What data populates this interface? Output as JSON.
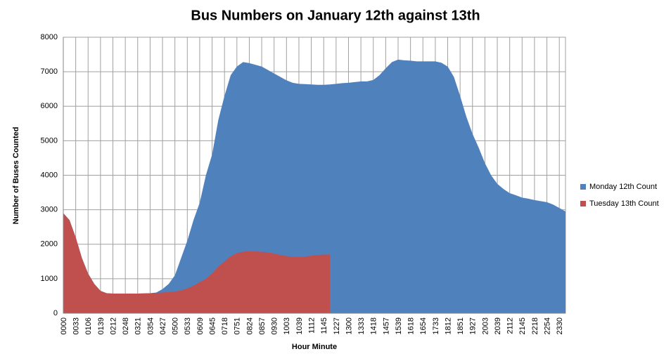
{
  "chart_data": {
    "type": "area",
    "title": "Bus Numbers on January 12th against 13th",
    "x_label": "Hour Minute",
    "y_label": "Number of Buses Counted",
    "categories": [
      "0000",
      null,
      "0033",
      null,
      "0106",
      null,
      "0139",
      null,
      "0212",
      null,
      "0248",
      null,
      "0321",
      null,
      "0354",
      null,
      "0427",
      null,
      "0500",
      null,
      "0533",
      null,
      "0609",
      null,
      "0645",
      null,
      "0718",
      null,
      "0751",
      null,
      "0824",
      null,
      "0857",
      null,
      "0930",
      null,
      "1003",
      null,
      "1039",
      null,
      "1112",
      null,
      "1145",
      null,
      "1227",
      null,
      "1300",
      null,
      "1333",
      null,
      "1418",
      null,
      "1457",
      null,
      "1539",
      null,
      "1618",
      null,
      "1654",
      null,
      "1733",
      null,
      "1812",
      null,
      "1851",
      null,
      "1927",
      null,
      "2003",
      null,
      "2039",
      null,
      "2112",
      null,
      "2145",
      null,
      "2218",
      null,
      "2254",
      null,
      "2330",
      null
    ],
    "series": [
      {
        "name": "Monday 12th Count",
        "color": "#4f81bd",
        "values": [
          2900,
          2700,
          2200,
          1600,
          1150,
          850,
          650,
          580,
          570,
          570,
          570,
          570,
          570,
          575,
          580,
          600,
          700,
          850,
          1100,
          1600,
          2100,
          2700,
          3200,
          4000,
          4600,
          5600,
          6300,
          6900,
          7150,
          7280,
          7250,
          7200,
          7150,
          7050,
          6950,
          6850,
          6750,
          6680,
          6650,
          6640,
          6630,
          6620,
          6620,
          6630,
          6650,
          6670,
          6680,
          6700,
          6720,
          6720,
          6760,
          6900,
          7100,
          7280,
          7350,
          7330,
          7320,
          7300,
          7300,
          7300,
          7300,
          7260,
          7150,
          6850,
          6300,
          5700,
          5200,
          4800,
          4350,
          4000,
          3750,
          3600,
          3480,
          3420,
          3350,
          3320,
          3280,
          3250,
          3220,
          3150,
          3050,
          2950
        ]
      },
      {
        "name": "Tuesday 13th Count",
        "color": "#c0504d",
        "values": [
          2900,
          2700,
          2200,
          1600,
          1150,
          850,
          650,
          580,
          570,
          570,
          570,
          570,
          570,
          575,
          580,
          590,
          600,
          610,
          630,
          660,
          720,
          800,
          900,
          1000,
          1150,
          1350,
          1500,
          1650,
          1740,
          1780,
          1800,
          1790,
          1780,
          1760,
          1730,
          1690,
          1660,
          1630,
          1630,
          1640,
          1670,
          1690,
          1700,
          1700,
          null,
          null,
          null,
          null,
          null,
          null,
          null,
          null,
          null,
          null,
          null,
          null,
          null,
          null,
          null,
          null,
          null,
          null,
          null,
          null,
          null,
          null,
          null,
          null,
          null,
          null,
          null,
          null,
          null,
          null,
          null,
          null,
          null,
          null,
          null,
          null,
          null,
          null
        ]
      }
    ],
    "ylim": [
      0,
      8000
    ],
    "yticks": [
      0,
      1000,
      2000,
      3000,
      4000,
      5000,
      6000,
      7000,
      8000
    ],
    "grid": true,
    "legend": "right"
  }
}
